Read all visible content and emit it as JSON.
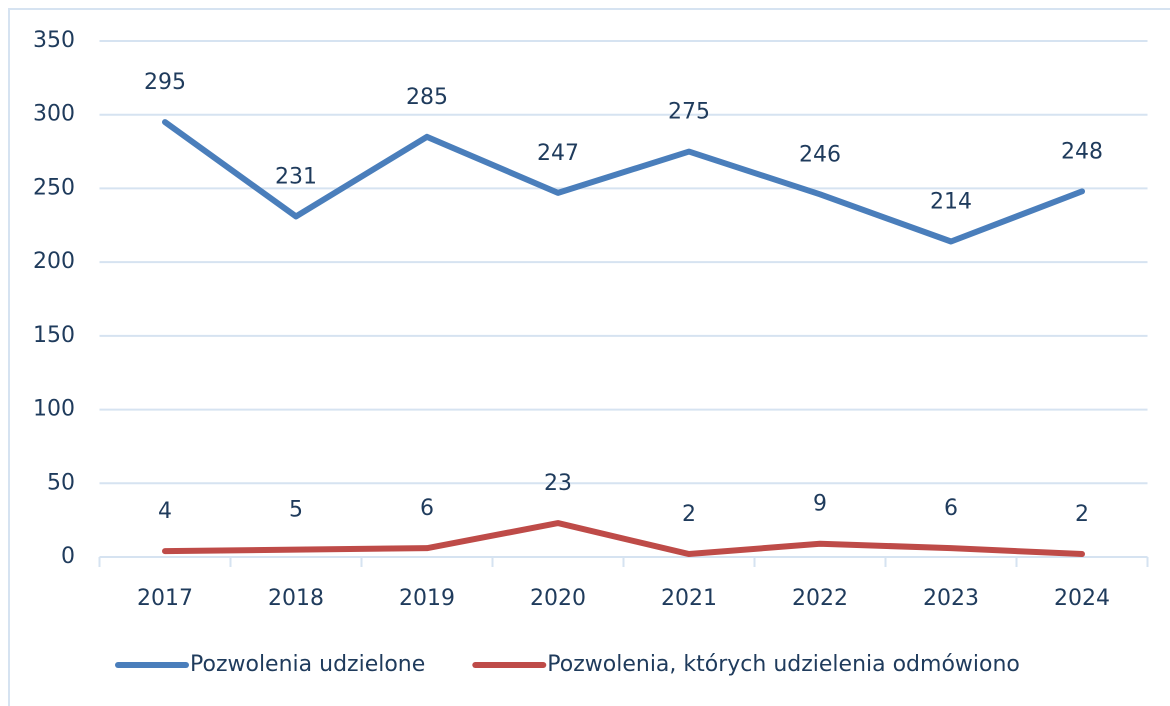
{
  "chart_data": {
    "type": "line",
    "categories": [
      "2017",
      "2018",
      "2019",
      "2020",
      "2021",
      "2022",
      "2023",
      "2024"
    ],
    "series": [
      {
        "name": "Pozwolenia udzielone",
        "color": "#4a7ebb",
        "values": [
          295,
          231,
          285,
          247,
          275,
          246,
          214,
          248
        ]
      },
      {
        "name": "Pozwolenia, których udzielenia odmówiono",
        "color": "#be4b48",
        "values": [
          4,
          5,
          6,
          23,
          2,
          9,
          6,
          2
        ]
      }
    ],
    "ylim": [
      0,
      350
    ],
    "yticks": [
      0,
      50,
      100,
      150,
      200,
      250,
      300,
      350
    ],
    "grid": true,
    "legend": "bottom"
  }
}
